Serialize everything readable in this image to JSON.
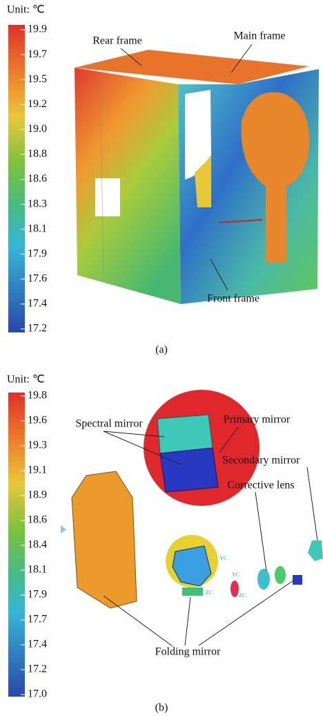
{
  "panels": [
    {
      "unit_label": "Unit: ℃",
      "colorbar_ticks": [
        "19.9",
        "19.7",
        "19.5",
        "19.2",
        "19.0",
        "18.8",
        "18.6",
        "18.3",
        "18.1",
        "17.9",
        "17.6",
        "17.4",
        "17.2"
      ],
      "labels": [
        "Rear frame",
        "Main frame",
        "Front frame"
      ],
      "caption": "(a)"
    },
    {
      "unit_label": "Unit: ℃",
      "colorbar_ticks": [
        "19.8",
        "19.6",
        "19.3",
        "19.1",
        "18.9",
        "18.6",
        "18.4",
        "18.1",
        "17.9",
        "17.7",
        "17.4",
        "17.2",
        "17.0"
      ],
      "labels": [
        "Spectral mirror",
        "Primary mirror",
        "Secondary mirror",
        "Corrective lens",
        "Folding mirror"
      ],
      "axis_marks": [
        "YC",
        "ZC",
        "YC",
        "ZC"
      ],
      "caption": "(b)"
    }
  ]
}
